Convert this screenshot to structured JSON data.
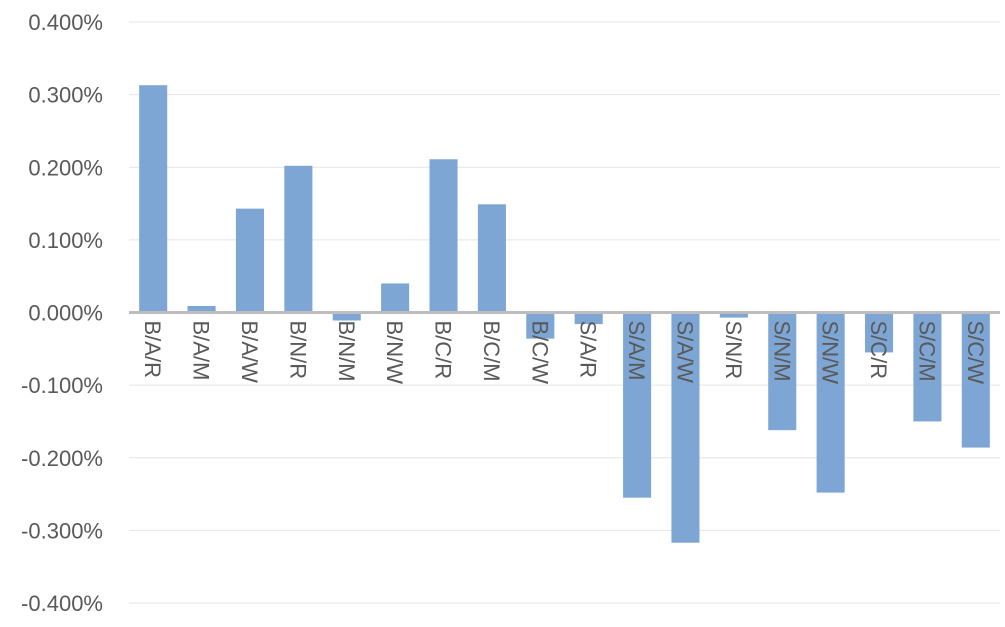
{
  "chart_data": {
    "type": "bar",
    "categories": [
      "B/A/R",
      "B/A/M",
      "B/A/W",
      "B/N/R",
      "B/N/M",
      "B/N/W",
      "B/C/R",
      "B/C/M",
      "B/C/W",
      "S/A/R",
      "S/A/M",
      "S/A/W",
      "S/N/R",
      "S/N/M",
      "S/N/W",
      "S/C/R",
      "S/C/M",
      "S/C/W"
    ],
    "values": [
      0.313,
      0.009,
      0.143,
      0.202,
      -0.011,
      0.04,
      0.211,
      0.149,
      -0.036,
      -0.016,
      -0.255,
      -0.317,
      -0.007,
      -0.162,
      -0.248,
      -0.055,
      -0.15,
      -0.186
    ],
    "value_unit": "percent",
    "ylim": [
      -0.4,
      0.4
    ],
    "y_ticks": [
      0.4,
      0.3,
      0.2,
      0.1,
      0.0,
      -0.1,
      -0.2,
      -0.3,
      -0.4
    ],
    "y_tick_labels": [
      "0.400%",
      "0.300%",
      "0.200%",
      "0.100%",
      "0.000%",
      "-0.100%",
      "-0.200%",
      "-0.300%",
      "-0.400%"
    ],
    "grid": true,
    "legend": "none",
    "title": "",
    "xlabel": "",
    "ylabel": "",
    "colors": {
      "bar": "#7ea6d4",
      "grid": "#e4e4e4",
      "axis": "#bdbdbd",
      "text": "#595959"
    }
  }
}
